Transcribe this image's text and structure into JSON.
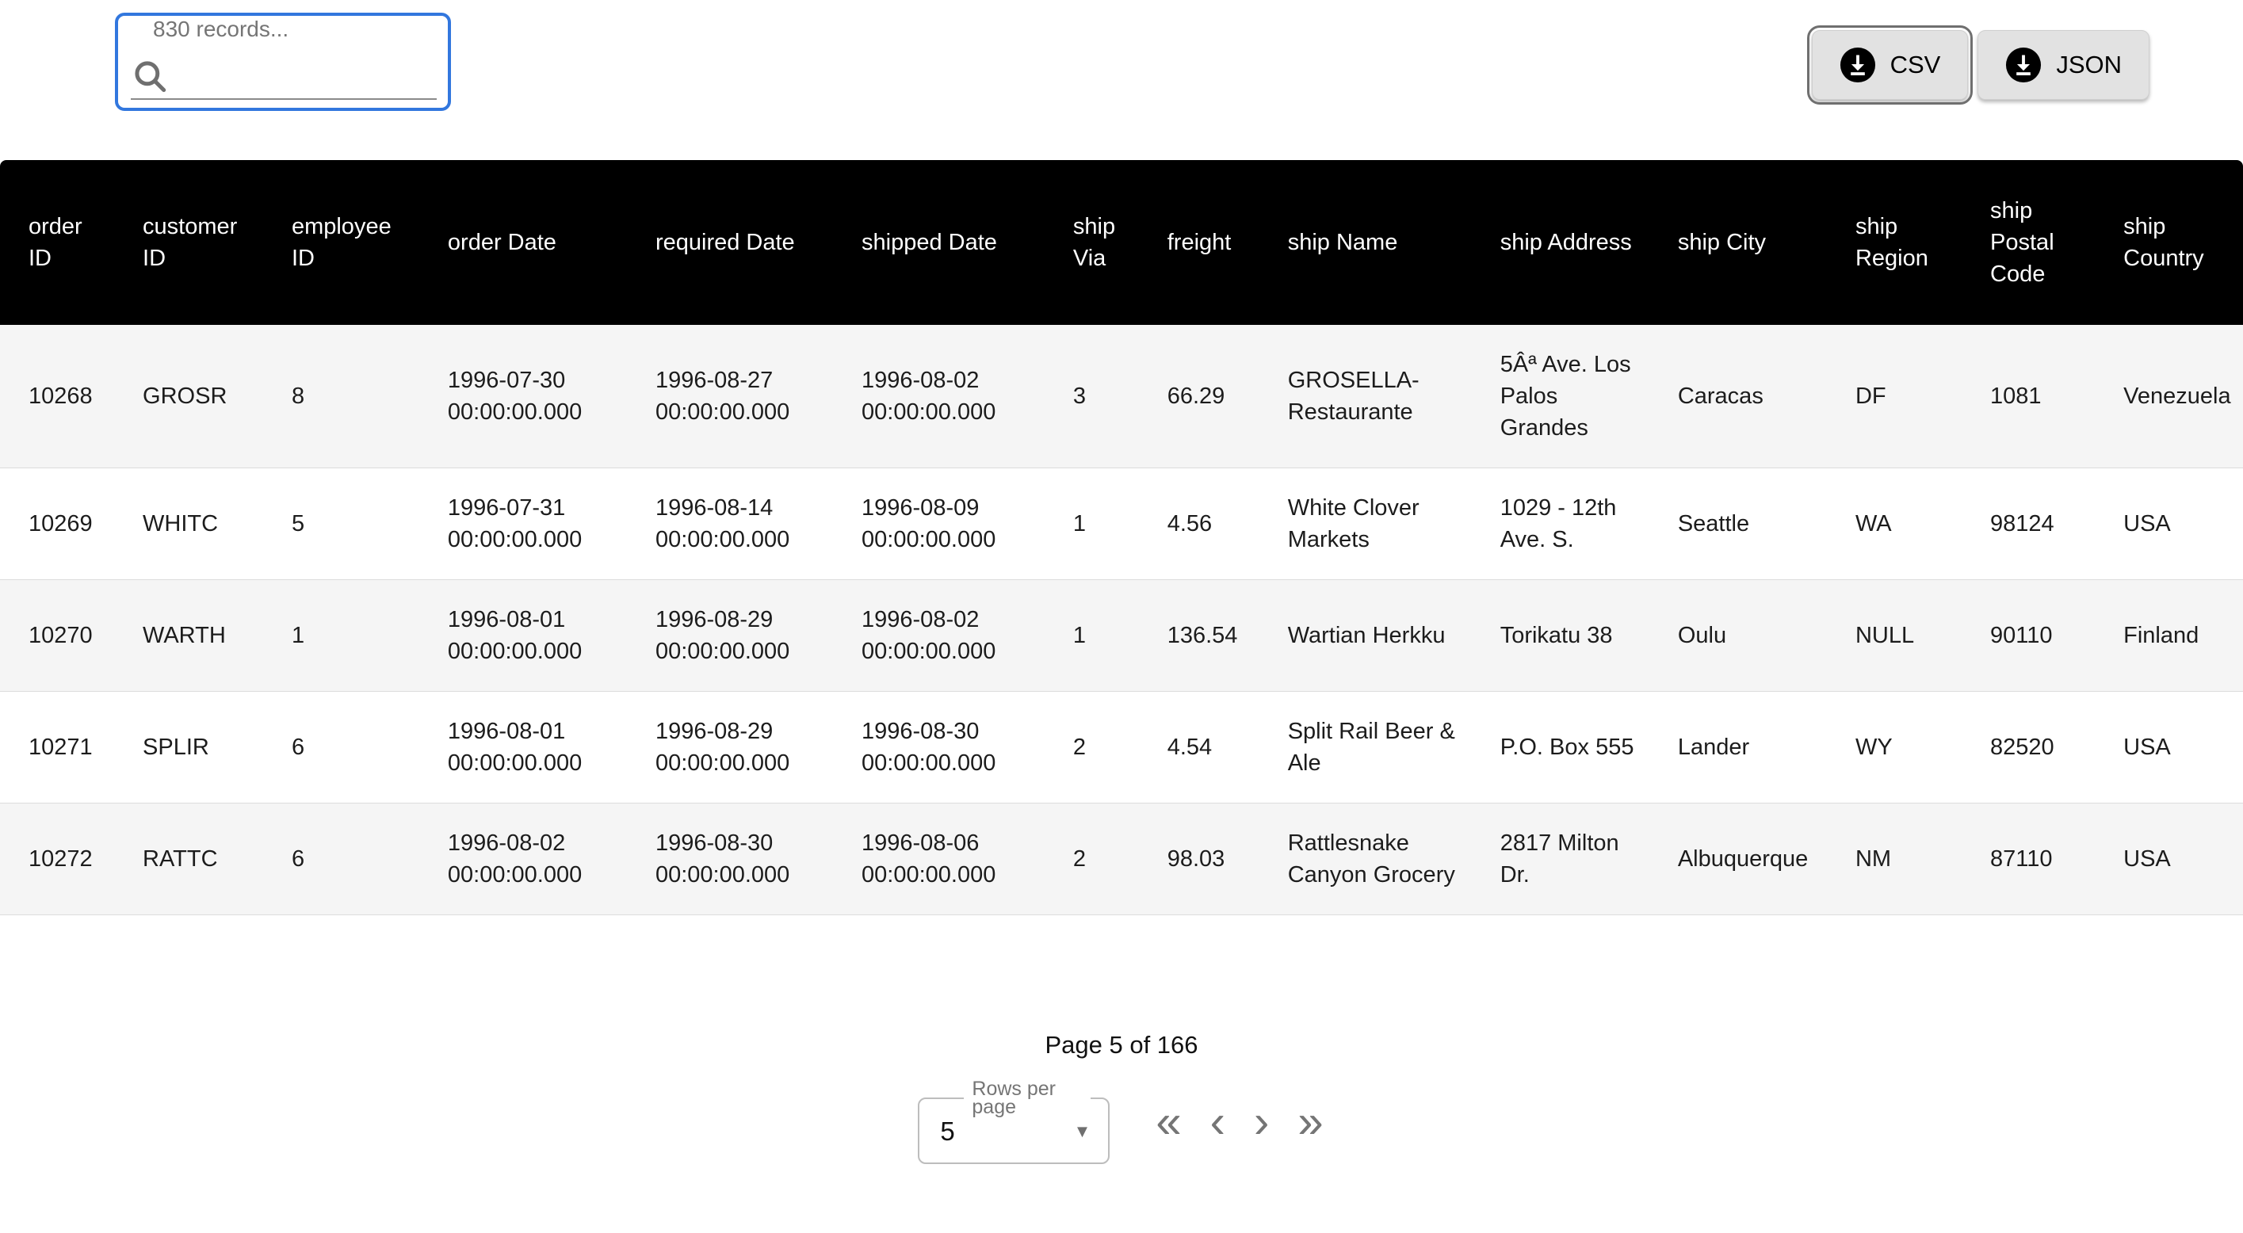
{
  "search": {
    "label": "830 records..."
  },
  "export": {
    "csv_label": "CSV",
    "json_label": "JSON"
  },
  "table": {
    "columns": [
      "order ID",
      "customer ID",
      "employee ID",
      "order Date",
      "required Date",
      "shipped Date",
      "ship Via",
      "freight",
      "ship Name",
      "ship Address",
      "ship City",
      "ship Region",
      "ship Postal Code",
      "ship Country"
    ],
    "rows": [
      [
        "10268",
        "GROSR",
        "8",
        "1996-07-30 00:00:00.000",
        "1996-08-27 00:00:00.000",
        "1996-08-02 00:00:00.000",
        "3",
        "66.29",
        "GROSELLA-Restaurante",
        "5Âª Ave. Los Palos Grandes",
        "Caracas",
        "DF",
        "1081",
        "Venezuela"
      ],
      [
        "10269",
        "WHITC",
        "5",
        "1996-07-31 00:00:00.000",
        "1996-08-14 00:00:00.000",
        "1996-08-09 00:00:00.000",
        "1",
        "4.56",
        "White Clover Markets",
        "1029 - 12th Ave. S.",
        "Seattle",
        "WA",
        "98124",
        "USA"
      ],
      [
        "10270",
        "WARTH",
        "1",
        "1996-08-01 00:00:00.000",
        "1996-08-29 00:00:00.000",
        "1996-08-02 00:00:00.000",
        "1",
        "136.54",
        "Wartian Herkku",
        "Torikatu 38",
        "Oulu",
        "NULL",
        "90110",
        "Finland"
      ],
      [
        "10271",
        "SPLIR",
        "6",
        "1996-08-01 00:00:00.000",
        "1996-08-29 00:00:00.000",
        "1996-08-30 00:00:00.000",
        "2",
        "4.54",
        "Split Rail Beer & Ale",
        "P.O. Box 555",
        "Lander",
        "WY",
        "82520",
        "USA"
      ],
      [
        "10272",
        "RATTC",
        "6",
        "1996-08-02 00:00:00.000",
        "1996-08-30 00:00:00.000",
        "1996-08-06 00:00:00.000",
        "2",
        "98.03",
        "Rattlesnake Canyon Grocery",
        "2817 Milton Dr.",
        "Albuquerque",
        "NM",
        "87110",
        "USA"
      ]
    ]
  },
  "pagination": {
    "page_status": "Page 5 of 166",
    "rows_per_page_label": "Rows per page",
    "rows_per_page_value": "5",
    "nav_icons": [
      {
        "name": "first-page",
        "glyph": "«"
      },
      {
        "name": "previous-page",
        "glyph": "‹"
      },
      {
        "name": "next-page",
        "glyph": "›"
      },
      {
        "name": "last-page",
        "glyph": "»"
      }
    ]
  },
  "colors": {
    "accent_blue": "#3277de",
    "header_bg": "#000000",
    "header_text": "#ffffff",
    "row_stripe": "#f5f5f5",
    "row_border": "#dcdcdc",
    "button_bg": "#e2e2e2",
    "icon_gray": "#757575"
  }
}
